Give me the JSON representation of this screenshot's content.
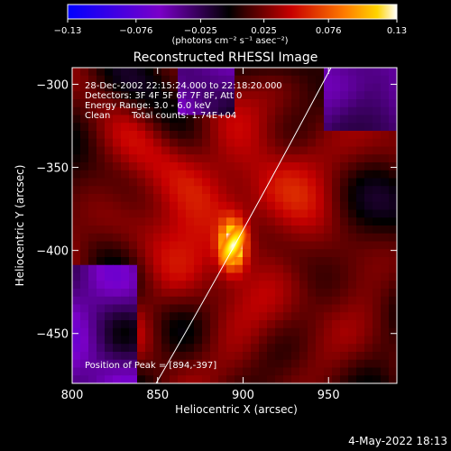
{
  "chart_data": {
    "type": "heatmap",
    "title": "Reconstructed RHESSI Image",
    "xlabel": "Heliocentric X (arcsec)",
    "ylabel": "Heliocentric Y (arcsec)",
    "x_range": [
      800,
      990
    ],
    "y_range": [
      -480,
      -290
    ],
    "x_ticks": [
      "800",
      "850",
      "900",
      "950"
    ],
    "y_ticks": [
      "-300",
      "-350",
      "-400",
      "-450"
    ],
    "colorbar": {
      "range": [
        -0.13,
        0.13
      ],
      "tick_labels": [
        "-0.13",
        "-0.076",
        "-0.025",
        "0.025",
        "0.076",
        "0.13"
      ],
      "units_label": "(photons cm⁻² s⁻¹ asec⁻²)"
    },
    "peak": {
      "x": 894,
      "y": -397
    },
    "annotations": {
      "time": "28-Dec-2002 22:15:24.000 to 22:18:20.000",
      "detectors": "Detectors: 3F 4F 5F 6F 7F 8F, Att 0",
      "energy": "Energy Range: 3.0 - 6.0 keV",
      "clean": "Clean",
      "total_counts": "Total counts: 1.74E+04",
      "peak_text": "Position of Peak = [894,-397]"
    },
    "colors": {
      "background": "#000000",
      "limb": "#ffffff"
    }
  },
  "footer": {
    "date": "4-May-2022 18:13"
  }
}
